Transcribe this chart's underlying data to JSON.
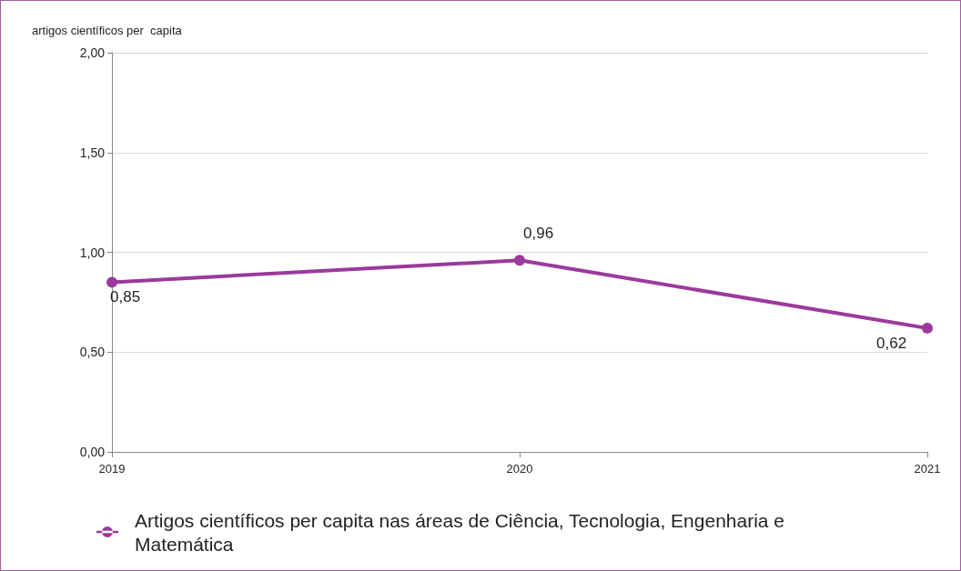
{
  "chart_data": {
    "type": "line",
    "ylabel": "artigos científicos per  capita",
    "categories": [
      "2019",
      "2020",
      "2021"
    ],
    "series": [
      {
        "name": "Artigos científicos per capita nas áreas de Ciência, Tecnologia, Engenharia e Matemática",
        "color": "#9b3a9b",
        "values": [
          0.85,
          0.96,
          0.62
        ],
        "value_labels": [
          "0,85",
          "0,96",
          "0,62"
        ]
      }
    ],
    "ylim": [
      0,
      2
    ],
    "yticks": [
      {
        "value": 0,
        "label": "0,00"
      },
      {
        "value": 0.5,
        "label": "0,50"
      },
      {
        "value": 1,
        "label": "1,00"
      },
      {
        "value": 1.5,
        "label": "1,50"
      },
      {
        "value": 2,
        "label": "2,00"
      }
    ],
    "grid": "y",
    "legend": "bottom left",
    "marker": "circle",
    "line_style": "solid"
  }
}
